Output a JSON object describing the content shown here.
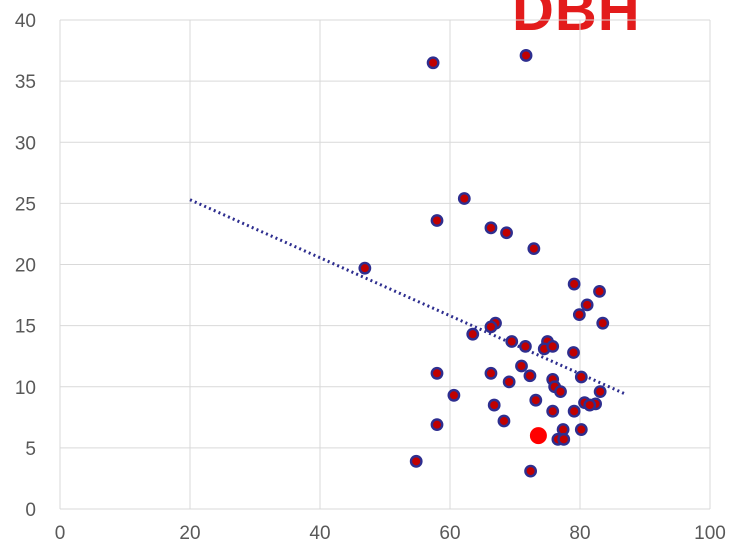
{
  "brand": {
    "text": "DBH",
    "color": "#e31b1b"
  },
  "chart_data": {
    "type": "scatter",
    "title": "",
    "xlabel": "",
    "ylabel": "",
    "xlim": [
      0,
      100
    ],
    "ylim": [
      0,
      40
    ],
    "x_ticks": [
      0,
      20,
      40,
      60,
      80,
      100
    ],
    "y_ticks": [
      0,
      5,
      10,
      15,
      20,
      25,
      30,
      35,
      40
    ],
    "grid": true,
    "legend": "none",
    "colors": {
      "point_fill": "#c00000",
      "point_stroke": "#2e2e8f",
      "highlight": "#ff0000",
      "trendline": "#2e2e8f",
      "grid": "#d9d9d9",
      "tick_text": "#595959"
    },
    "series": [
      {
        "points": [
          {
            "x": 57.4,
            "y": 36.5
          },
          {
            "x": 71.7,
            "y": 37.1
          },
          {
            "x": 62.2,
            "y": 25.4
          },
          {
            "x": 58.0,
            "y": 23.6
          },
          {
            "x": 66.3,
            "y": 23.0
          },
          {
            "x": 68.7,
            "y": 22.6
          },
          {
            "x": 72.9,
            "y": 21.3
          },
          {
            "x": 46.9,
            "y": 19.7
          },
          {
            "x": 79.1,
            "y": 18.4
          },
          {
            "x": 83.0,
            "y": 17.8
          },
          {
            "x": 81.1,
            "y": 16.7
          },
          {
            "x": 79.9,
            "y": 15.9
          },
          {
            "x": 83.5,
            "y": 15.2
          },
          {
            "x": 67.0,
            "y": 15.2
          },
          {
            "x": 66.3,
            "y": 14.9
          },
          {
            "x": 63.5,
            "y": 14.3
          },
          {
            "x": 69.5,
            "y": 13.7
          },
          {
            "x": 71.6,
            "y": 13.3
          },
          {
            "x": 75.0,
            "y": 13.7
          },
          {
            "x": 74.5,
            "y": 13.1
          },
          {
            "x": 75.8,
            "y": 13.3
          },
          {
            "x": 79.0,
            "y": 12.8
          },
          {
            "x": 71.0,
            "y": 11.7
          },
          {
            "x": 58.0,
            "y": 11.1
          },
          {
            "x": 66.3,
            "y": 11.1
          },
          {
            "x": 72.3,
            "y": 10.9
          },
          {
            "x": 75.8,
            "y": 10.6
          },
          {
            "x": 80.2,
            "y": 10.8
          },
          {
            "x": 69.1,
            "y": 10.4
          },
          {
            "x": 76.1,
            "y": 10.0
          },
          {
            "x": 77.0,
            "y": 9.6
          },
          {
            "x": 83.1,
            "y": 9.6
          },
          {
            "x": 60.6,
            "y": 9.3
          },
          {
            "x": 73.2,
            "y": 8.9
          },
          {
            "x": 80.7,
            "y": 8.7
          },
          {
            "x": 82.4,
            "y": 8.6
          },
          {
            "x": 81.5,
            "y": 8.5
          },
          {
            "x": 66.8,
            "y": 8.5
          },
          {
            "x": 75.8,
            "y": 8.0
          },
          {
            "x": 79.1,
            "y": 8.0
          },
          {
            "x": 68.3,
            "y": 7.2
          },
          {
            "x": 58.0,
            "y": 6.9
          },
          {
            "x": 77.4,
            "y": 6.5
          },
          {
            "x": 80.2,
            "y": 6.5
          },
          {
            "x": 76.6,
            "y": 5.7
          },
          {
            "x": 77.5,
            "y": 5.7
          },
          {
            "x": 54.8,
            "y": 3.9
          },
          {
            "x": 72.4,
            "y": 3.1
          }
        ]
      }
    ],
    "highlight_point": {
      "x": 73.6,
      "y": 6.0
    },
    "trendline": {
      "style": "dotted",
      "from": {
        "x": 20,
        "y": 25.3
      },
      "to": {
        "x": 87,
        "y": 9.4
      }
    }
  }
}
